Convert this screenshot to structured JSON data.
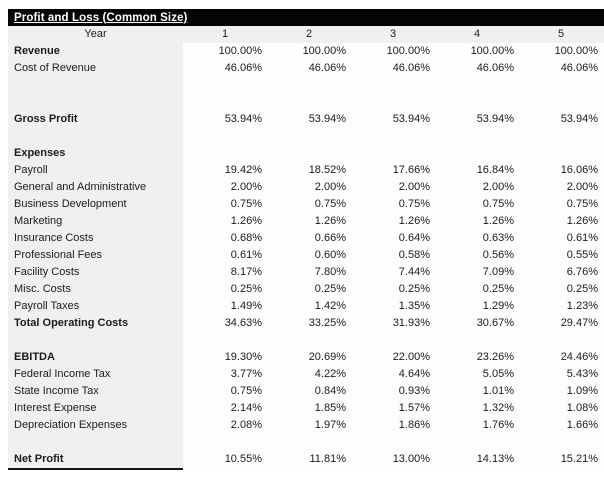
{
  "title_bar": {
    "title": "Profit and Loss (Common Size)"
  },
  "table": {
    "year_label": "Year",
    "year_columns": [
      "1",
      "2",
      "3",
      "4",
      "5"
    ],
    "rows": [
      {
        "label": "Revenue",
        "bold": true,
        "values": [
          "100.00%",
          "100.00%",
          "100.00%",
          "100.00%",
          "100.00%"
        ]
      },
      {
        "label": "Cost of Revenue",
        "bold": false,
        "values": [
          "46.06%",
          "46.06%",
          "46.06%",
          "46.06%",
          "46.06%"
        ]
      },
      {
        "label": "",
        "bold": false,
        "values": null
      },
      {
        "label": "",
        "bold": false,
        "values": null
      },
      {
        "label": "Gross Profit",
        "bold": true,
        "values": [
          "53.94%",
          "53.94%",
          "53.94%",
          "53.94%",
          "53.94%"
        ]
      },
      {
        "label": "",
        "bold": false,
        "values": null
      },
      {
        "label": "Expenses",
        "bold": true,
        "values": null
      },
      {
        "label": "Payroll",
        "bold": false,
        "values": [
          "19.42%",
          "18.52%",
          "17.66%",
          "16.84%",
          "16.06%"
        ]
      },
      {
        "label": "General and Administrative",
        "bold": false,
        "values": [
          "2.00%",
          "2.00%",
          "2.00%",
          "2.00%",
          "2.00%"
        ]
      },
      {
        "label": "Business Development",
        "bold": false,
        "values": [
          "0.75%",
          "0.75%",
          "0.75%",
          "0.75%",
          "0.75%"
        ]
      },
      {
        "label": "Marketing",
        "bold": false,
        "values": [
          "1.26%",
          "1.26%",
          "1.26%",
          "1.26%",
          "1.26%"
        ]
      },
      {
        "label": "Insurance Costs",
        "bold": false,
        "values": [
          "0.68%",
          "0.66%",
          "0.64%",
          "0.63%",
          "0.61%"
        ]
      },
      {
        "label": "Professional Fees",
        "bold": false,
        "values": [
          "0.61%",
          "0.60%",
          "0.58%",
          "0.56%",
          "0.55%"
        ]
      },
      {
        "label": "Facility Costs",
        "bold": false,
        "values": [
          "8.17%",
          "7.80%",
          "7.44%",
          "7.09%",
          "6.76%"
        ]
      },
      {
        "label": "Misc. Costs",
        "bold": false,
        "values": [
          "0.25%",
          "0.25%",
          "0.25%",
          "0.25%",
          "0.25%"
        ]
      },
      {
        "label": "Payroll Taxes",
        "bold": false,
        "values": [
          "1.49%",
          "1.42%",
          "1.35%",
          "1.29%",
          "1.23%"
        ]
      },
      {
        "label": "Total Operating Costs",
        "bold": true,
        "values": [
          "34.63%",
          "33.25%",
          "31.93%",
          "30.67%",
          "29.47%"
        ]
      },
      {
        "label": "",
        "bold": false,
        "values": null
      },
      {
        "label": "EBITDA",
        "bold": true,
        "values": [
          "19.30%",
          "20.69%",
          "22.00%",
          "23.26%",
          "24.46%"
        ]
      },
      {
        "label": "Federal Income Tax",
        "bold": false,
        "values": [
          "3.77%",
          "4.22%",
          "4.64%",
          "5.05%",
          "5.43%"
        ]
      },
      {
        "label": "State Income Tax",
        "bold": false,
        "values": [
          "0.75%",
          "0.84%",
          "0.93%",
          "1.01%",
          "1.09%"
        ]
      },
      {
        "label": "Interest Expense",
        "bold": false,
        "values": [
          "2.14%",
          "1.85%",
          "1.57%",
          "1.32%",
          "1.08%"
        ]
      },
      {
        "label": "Depreciation Expenses",
        "bold": false,
        "values": [
          "2.08%",
          "1.97%",
          "1.86%",
          "1.76%",
          "1.66%"
        ]
      },
      {
        "label": "",
        "bold": false,
        "values": null
      },
      {
        "label": "Net Profit",
        "bold": true,
        "values": [
          "10.55%",
          "11.81%",
          "13.00%",
          "14.13%",
          "15.21%"
        ]
      }
    ]
  },
  "colors": {
    "title_bar_bg": "#050505",
    "title_text": "#ffffff",
    "label_band_bg": "#f0f0f0",
    "data_area_bg": "#fdfdfd",
    "text": "#1c1c1c",
    "total_rule": "#161616"
  }
}
